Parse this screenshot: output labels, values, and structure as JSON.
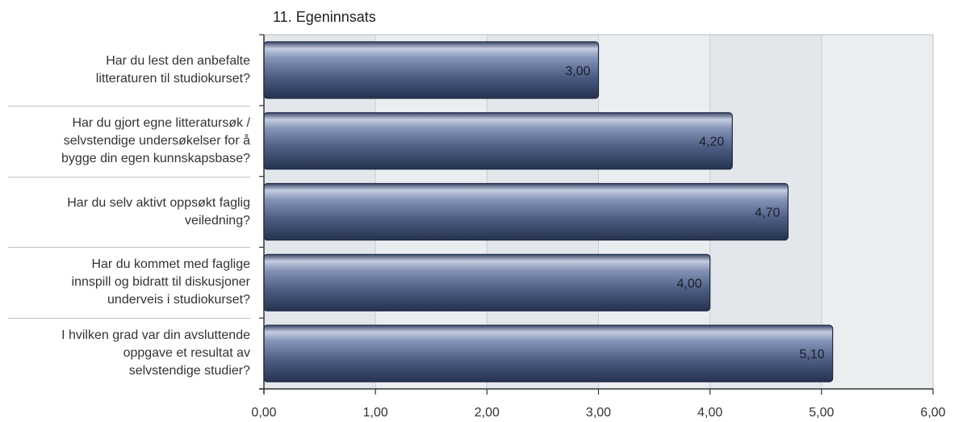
{
  "chart_data": {
    "type": "bar",
    "orientation": "horizontal",
    "title": "11. Egeninnsats",
    "categories": [
      "Har du lest den anbefalte\nlitteraturen til studiokurset?",
      "Har du gjort egne litteratursøk /\nselvstendige undersøkelser for å\nbygge din egen kunnskapsbase?",
      "Har du selv aktivt oppsøkt faglig\nveiledning?",
      "Har du kommet med faglige\ninnspill og bidratt til diskusjoner\nunderveis i studiokurset?",
      "I hvilken grad var din avsluttende\noppgave et resultat av\nselvstendige studier?"
    ],
    "values": [
      3.0,
      4.2,
      4.7,
      4.0,
      5.1
    ],
    "value_labels": [
      "3,00",
      "4,20",
      "4,70",
      "4,00",
      "5,10"
    ],
    "xlim": [
      0,
      6
    ],
    "xticks": [
      0,
      1,
      2,
      3,
      4,
      5,
      6
    ],
    "xtick_labels": [
      "0,00",
      "1,00",
      "2,00",
      "3,00",
      "4,00",
      "5,00",
      "6,00"
    ],
    "grid": true,
    "colors": {
      "bar": "#4f5f86",
      "bar_light": "#97a6c6",
      "bar_dark": "#263453",
      "plot_bg": "#e3e6ea",
      "band_bg": "#ebeef1",
      "grid": "#c9ccd0"
    }
  }
}
